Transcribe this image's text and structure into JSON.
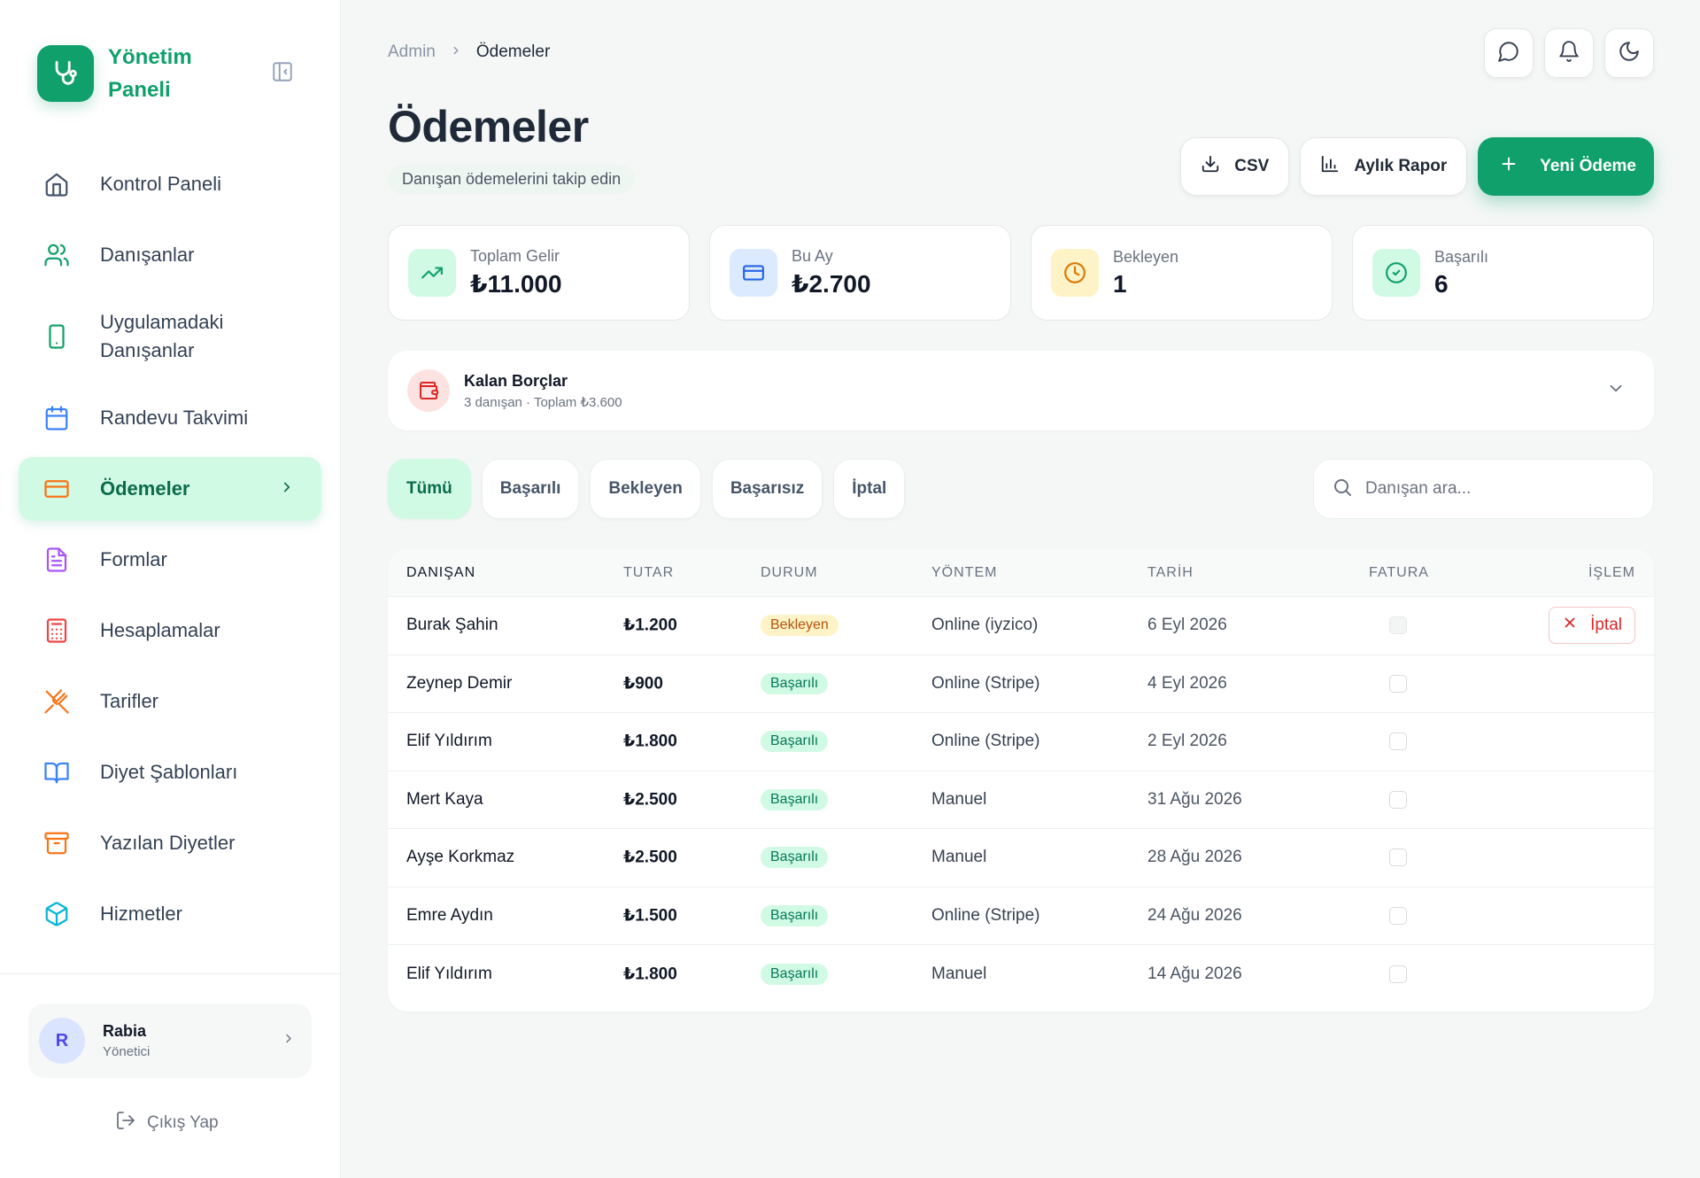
{
  "brand": {
    "name": "Yönetim Paneli"
  },
  "sidebar": {
    "items": [
      {
        "label": "Kontrol Paneli",
        "icon": "home-icon"
      },
      {
        "label": "Danışanlar",
        "icon": "users-icon"
      },
      {
        "label": "Uygulamadaki Danışanlar",
        "icon": "smartphone-icon"
      },
      {
        "label": "Randevu Takvimi",
        "icon": "calendar-icon"
      },
      {
        "label": "Ödemeler",
        "icon": "credit-card-icon",
        "active": true
      },
      {
        "label": "Formlar",
        "icon": "file-text-icon"
      },
      {
        "label": "Hesaplamalar",
        "icon": "calculator-icon"
      },
      {
        "label": "Tarifler",
        "icon": "utensils-icon"
      },
      {
        "label": "Diyet Şablonları",
        "icon": "book-open-icon"
      },
      {
        "label": "Yazılan Diyetler",
        "icon": "archive-icon"
      },
      {
        "label": "Hizmetler",
        "icon": "box-icon"
      }
    ],
    "user": {
      "initial": "R",
      "name": "Rabia",
      "role": "Yönetici"
    },
    "logout_label": "Çıkış Yap"
  },
  "breadcrumb": {
    "parent": "Admin",
    "current": "Ödemeler"
  },
  "page": {
    "title": "Ödemeler",
    "subtitle": "Danışan ödemelerini takip edin",
    "csv_label": "CSV",
    "report_label": "Aylık Rapor",
    "new_payment_label": "Yeni Ödeme"
  },
  "stats": [
    {
      "label": "Toplam Gelir",
      "value": "₺11.000",
      "icon": "trending-up-icon",
      "bg": "#d1fae5",
      "color": "#10a06b"
    },
    {
      "label": "Bu Ay",
      "value": "₺2.700",
      "icon": "credit-card-icon",
      "bg": "#dbeafe",
      "color": "#2563eb"
    },
    {
      "label": "Bekleyen",
      "value": "1",
      "icon": "clock-icon",
      "bg": "#fef3c7",
      "color": "#d97706"
    },
    {
      "label": "Başarılı",
      "value": "6",
      "icon": "check-circle-icon",
      "bg": "#d1fae5",
      "color": "#10a06b"
    }
  ],
  "debts": {
    "title": "Kalan Borçlar",
    "subtitle": "3 danışan · Toplam ₺3.600"
  },
  "filters": [
    "Tümü",
    "Başarılı",
    "Bekleyen",
    "Başarısız",
    "İptal"
  ],
  "search": {
    "placeholder": "Danışan ara..."
  },
  "table": {
    "headers": [
      "DANIŞAN",
      "TUTAR",
      "DURUM",
      "YÖNTEM",
      "TARİH",
      "FATURA",
      "İŞLEM"
    ],
    "rows": [
      {
        "name": "Burak Şahin",
        "amount": "₺1.200",
        "status": "Bekleyen",
        "method": "Online (iyzico)",
        "date": "6 Eyl 2026",
        "action": "İptal"
      },
      {
        "name": "Zeynep Demir",
        "amount": "₺900",
        "status": "Başarılı",
        "method": "Online (Stripe)",
        "date": "4 Eyl 2026"
      },
      {
        "name": "Elif Yıldırım",
        "amount": "₺1.800",
        "status": "Başarılı",
        "method": "Online (Stripe)",
        "date": "2 Eyl 2026"
      },
      {
        "name": "Mert Kaya",
        "amount": "₺2.500",
        "status": "Başarılı",
        "method": "Manuel",
        "date": "31 Ağu 2026"
      },
      {
        "name": "Ayşe Korkmaz",
        "amount": "₺2.500",
        "status": "Başarılı",
        "method": "Manuel",
        "date": "28 Ağu 2026"
      },
      {
        "name": "Emre Aydın",
        "amount": "₺1.500",
        "status": "Başarılı",
        "method": "Online (Stripe)",
        "date": "24 Ağu 2026"
      },
      {
        "name": "Elif Yıldırım",
        "amount": "₺1.800",
        "status": "Başarılı",
        "method": "Manuel",
        "date": "14 Ağu 2026"
      }
    ]
  },
  "colors": {
    "accent": "#10a06b",
    "danger": "#dc2626",
    "warning": "#b45309"
  }
}
